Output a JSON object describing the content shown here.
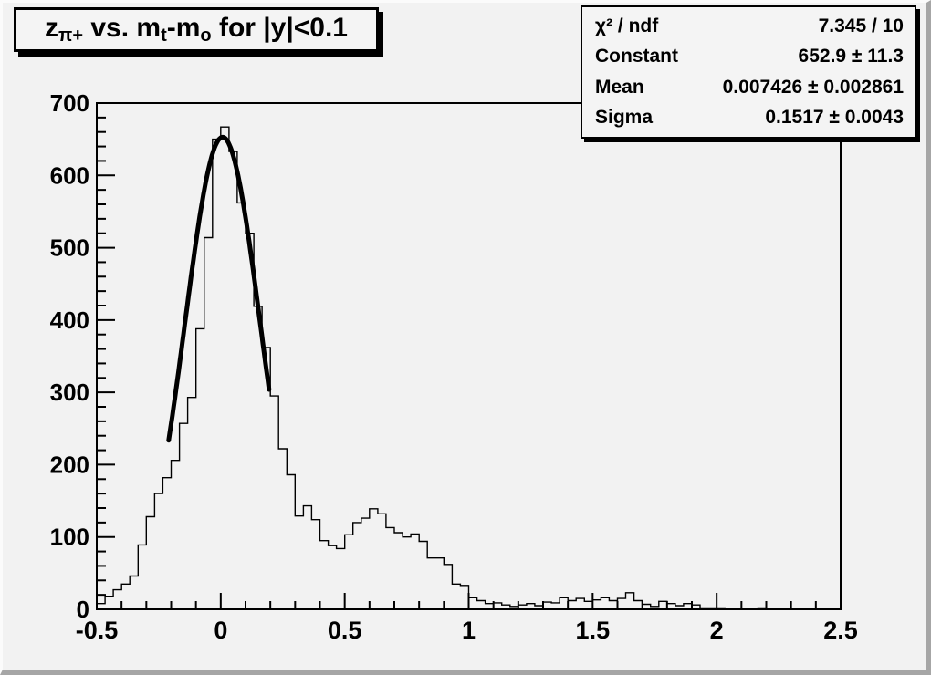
{
  "title": {
    "p1": "z",
    "s1": "π+",
    "p2": " vs. m",
    "s2": "t",
    "p3": "-m",
    "s3": "o",
    "p4": " for |y|<0.1"
  },
  "stats": {
    "rows": [
      {
        "label": "χ² / ndf",
        "value": "7.345 / 10"
      },
      {
        "label": "Constant",
        "value": "652.9 ± 11.3"
      },
      {
        "label": "Mean",
        "value": "0.007426 ± 0.002861"
      },
      {
        "label": "Sigma",
        "value": "0.1517 ± 0.0043"
      }
    ]
  },
  "colors": {
    "background": "#f2f2f2",
    "axis": "#000000",
    "histogram_line": "#000000",
    "fit_line": "#000000",
    "pave_fill": "#f4f4f4",
    "pave_shadow": "#000000"
  },
  "chart_data": {
    "type": "bar",
    "subtype": "histogram-steps",
    "title": "z_{π+} vs. m_t-m_o for |y|<0.1",
    "xlabel": "",
    "ylabel": "",
    "xlim": [
      -0.5,
      2.5
    ],
    "ylim": [
      0,
      700
    ],
    "grid": false,
    "legend_position": "none",
    "bin_start": -0.5,
    "bin_width": 0.033333,
    "values": [
      8,
      18,
      27,
      35,
      46,
      89,
      128,
      160,
      182,
      206,
      257,
      293,
      388,
      514,
      650,
      667,
      633,
      562,
      520,
      419,
      362,
      295,
      222,
      186,
      129,
      143,
      124,
      95,
      88,
      84,
      103,
      120,
      126,
      139,
      132,
      113,
      106,
      100,
      104,
      94,
      71,
      71,
      62,
      35,
      33,
      16,
      12,
      8,
      9,
      6,
      4,
      6,
      8,
      5,
      10,
      9,
      16,
      12,
      15,
      11,
      13,
      16,
      12,
      15,
      23,
      12,
      7,
      4,
      11,
      8,
      5,
      8,
      6,
      2,
      2,
      2,
      1,
      0,
      0,
      1,
      2,
      1,
      0,
      1,
      1,
      0,
      1,
      0,
      1,
      0
    ],
    "x_ticks": {
      "major_step": 0.5,
      "minor_step": 0.1,
      "labels": [
        "-0.5",
        "0",
        "0.5",
        "1",
        "1.5",
        "2",
        "2.5"
      ],
      "label_values": [
        -0.5,
        0,
        0.5,
        1,
        1.5,
        2,
        2.5
      ]
    },
    "y_ticks": {
      "major_step": 100,
      "minor_step": 20,
      "labels": [
        "0",
        "100",
        "200",
        "300",
        "400",
        "500",
        "600",
        "700"
      ],
      "label_values": [
        0,
        100,
        200,
        300,
        400,
        500,
        600,
        700
      ]
    },
    "fit": {
      "type": "gaussian",
      "constant": 652.9,
      "mean": 0.007426,
      "sigma": 0.1517,
      "draw_range": [
        -0.21,
        0.195
      ],
      "chi2": 7.345,
      "ndf": 10
    }
  }
}
